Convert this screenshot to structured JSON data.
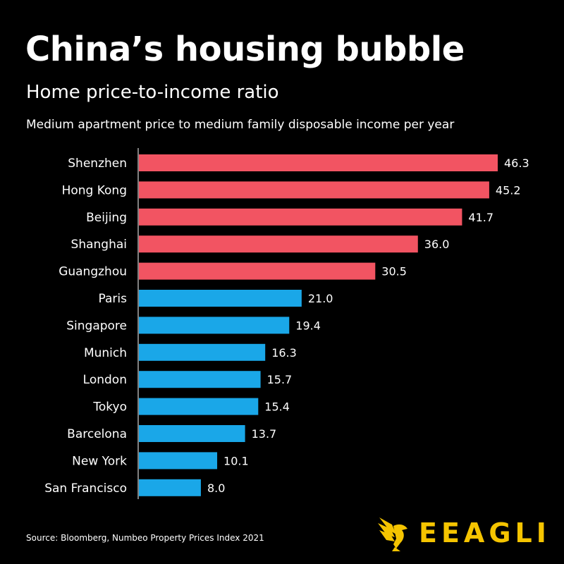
{
  "title": "China’s housing bubble",
  "subtitle": "Home price-to-income ratio",
  "description": "Medium apartment price to medium family disposable income per year",
  "source": "Source: Bloomberg, Numbeo Property Prices Index 2021",
  "brand": {
    "name": "EEAGLI",
    "color": "#f5c400",
    "icon": "eagle-icon"
  },
  "colors": {
    "background": "#000000",
    "china": "#f25462",
    "other": "#1aa7e8"
  },
  "chart_data": {
    "type": "bar",
    "orientation": "horizontal",
    "categories": [
      "Shenzhen",
      "Hong Kong",
      "Beijing",
      "Shanghai",
      "Guangzhou",
      "Paris",
      "Singapore",
      "Munich",
      "London",
      "Tokyo",
      "Barcelona",
      "New York",
      "San Francisco"
    ],
    "values": [
      46.3,
      45.2,
      41.7,
      36.0,
      30.5,
      21.0,
      19.4,
      16.3,
      15.7,
      15.4,
      13.7,
      10.1,
      8.0
    ],
    "labels": [
      "46.3",
      "45.2",
      "41.7",
      "36.0",
      "30.5",
      "21.0",
      "19.4",
      "16.3",
      "15.7",
      "15.4",
      "13.7",
      "10.1",
      "8.0"
    ],
    "groups": [
      "china",
      "china",
      "china",
      "china",
      "china",
      "other",
      "other",
      "other",
      "other",
      "other",
      "other",
      "other",
      "other"
    ],
    "title": "China’s housing bubble",
    "xlabel": "",
    "ylabel": "",
    "xlim": [
      0,
      46.3
    ],
    "grid": false
  }
}
